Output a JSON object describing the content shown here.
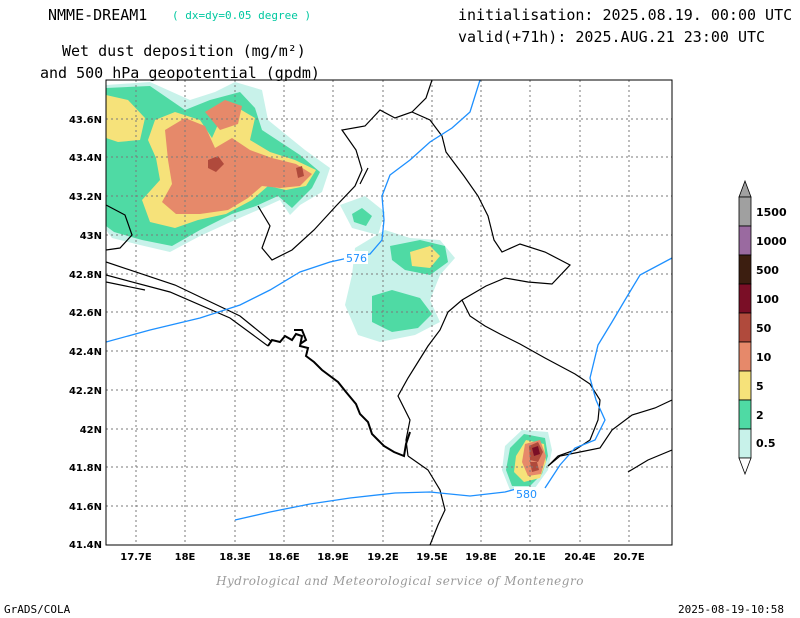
{
  "header": {
    "model": "NMME-DREAM1",
    "resolution": "( dx=dy=0.05 degree )",
    "initialisation": "initialisation: 2025.08.19. 00:00 UTC",
    "valid": "valid(+71h): 2025.AUG.21 23:00 UTC",
    "field_line1": "Wet dust deposition (mg/m²)",
    "field_line2": "and 500 hPa geopotential (gpdm)"
  },
  "map": {
    "lat_labels": [
      "41.4N",
      "41.6N",
      "41.8N",
      "42N",
      "42.2N",
      "42.4N",
      "42.6N",
      "42.8N",
      "43N",
      "43.2N",
      "43.4N",
      "43.6N"
    ],
    "lon_labels": [
      "17.7E",
      "18E",
      "18.3E",
      "18.6E",
      "18.9E",
      "19.2E",
      "19.5E",
      "19.8E",
      "20.1E",
      "20.4E",
      "20.7E"
    ],
    "geopotential_contours": [
      "576",
      "580"
    ],
    "contour_color": "#1e90ff"
  },
  "colorbar": {
    "levels": [
      "1500",
      "1000",
      "500",
      "100",
      "50",
      "10",
      "5",
      "2",
      "0.5"
    ],
    "colors": [
      "#a0a0a0",
      "#9a6aa0",
      "#3c1e10",
      "#7a0e26",
      "#b04a3c",
      "#e6896a",
      "#f6e27a",
      "#4fdaa4",
      "#c8f2ea"
    ]
  },
  "footer": {
    "credit": "Hydrological and Meteorological service of Montenegro",
    "software": "GrADS/COLA",
    "timestamp": "2025-08-19-10:58"
  }
}
